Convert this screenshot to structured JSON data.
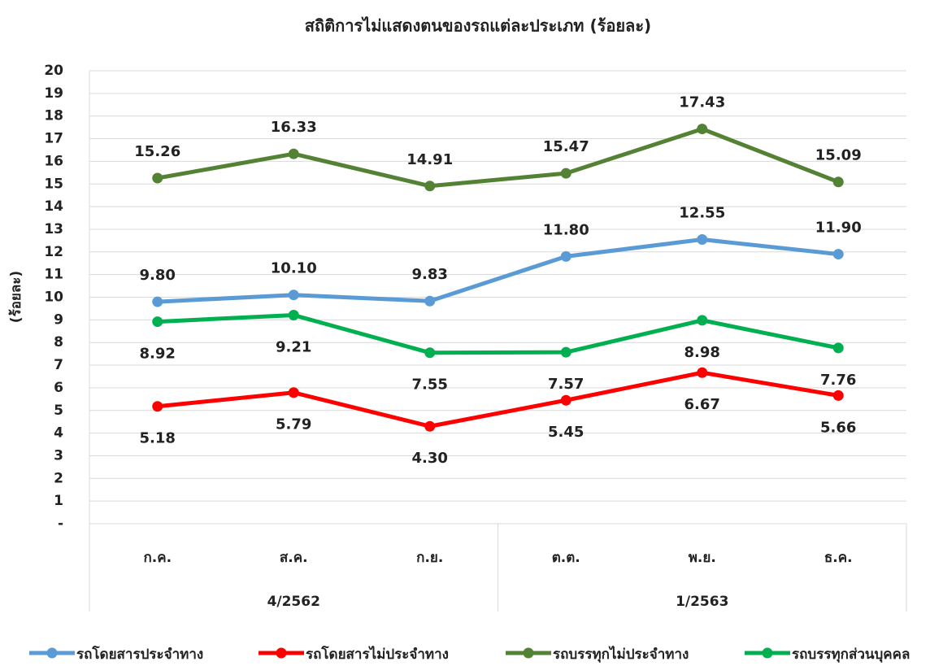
{
  "chart_data": {
    "type": "line",
    "title": "สถิติการไม่แสดงตนของรถแต่ละประเภท (ร้อยละ)",
    "y_label": "(ร้อยละ)",
    "categories": [
      "ก.ค.",
      "ส.ค.",
      "ก.ย.",
      "ต.ต.",
      "พ.ย.",
      "ธ.ค."
    ],
    "groups": [
      "4/2562",
      "1/2563"
    ],
    "series": [
      {
        "name": "รถโดยสารประจำทาง",
        "color": "#5b9bd5",
        "values": [
          9.8,
          10.1,
          9.83,
          11.8,
          12.55,
          11.9
        ],
        "value_labels": [
          "9.80",
          "10.10",
          "9.83",
          "11.80",
          "12.55",
          "11.90"
        ]
      },
      {
        "name": "รถโดยสารไม่ประจำทาง",
        "color": "#ff0000",
        "values": [
          5.18,
          5.79,
          4.3,
          5.45,
          6.67,
          5.66
        ],
        "value_labels": [
          "5.18",
          "5.79",
          "4.30",
          "5.45",
          "6.67",
          "5.66"
        ]
      },
      {
        "name": "รถบรรทุกไม่ประจำทาง",
        "color": "#548235",
        "values": [
          15.26,
          16.33,
          14.91,
          15.47,
          17.43,
          15.09
        ],
        "value_labels": [
          "15.26",
          "16.33",
          "14.91",
          "15.47",
          "17.43",
          "15.09"
        ]
      },
      {
        "name": "รถบรรทุกส่วนบุคคล",
        "color": "#00b050",
        "values": [
          8.92,
          9.21,
          7.55,
          7.57,
          8.98,
          7.76
        ],
        "value_labels": [
          "8.92",
          "9.21",
          "7.55",
          "7.57",
          "8.98",
          "7.76"
        ]
      }
    ],
    "ylim": [
      0,
      20
    ],
    "yticks": [
      {
        "value": 0,
        "label": "-"
      },
      1,
      2,
      3,
      4,
      5,
      6,
      7,
      8,
      9,
      10,
      11,
      12,
      13,
      14,
      15,
      16,
      17,
      18,
      19,
      20
    ],
    "grid": true
  }
}
